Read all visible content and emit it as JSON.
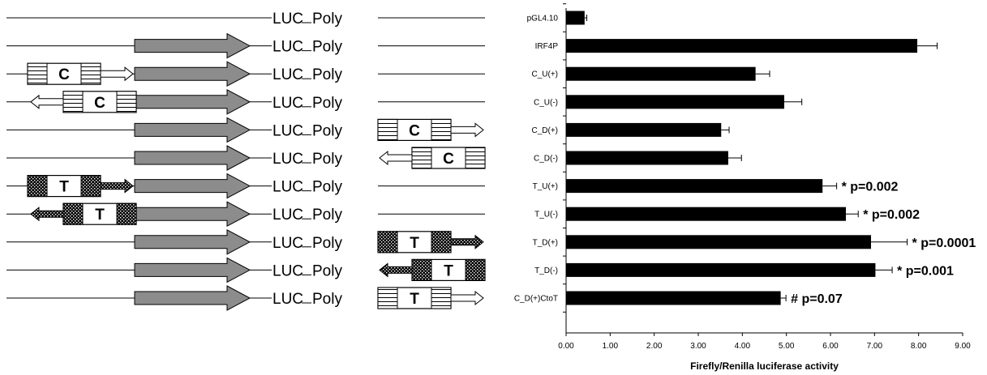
{
  "chart_data": {
    "type": "bar",
    "orientation": "horizontal",
    "categories": [
      "pGL4.10",
      "IRF4P",
      "C_U(+)",
      "C_U(-)",
      "C_D(+)",
      "C_D(-)",
      "T_U(+)",
      "T_U(-)",
      "T_D(+)",
      "T_D(-)",
      "C_D(+)CtoT"
    ],
    "values": [
      0.42,
      7.97,
      4.3,
      4.95,
      3.52,
      3.68,
      5.82,
      6.35,
      6.92,
      7.02,
      4.87
    ],
    "errors": [
      0.05,
      0.45,
      0.32,
      0.4,
      0.18,
      0.3,
      0.32,
      0.28,
      0.82,
      0.38,
      0.12
    ],
    "annotations": [
      "",
      "",
      "",
      "",
      "",
      "",
      "* p=0.002",
      "* p=0.002",
      "* p=0.0001",
      "* p=0.001",
      "# p=0.07"
    ],
    "xlabel": "Firefly/Renilla luciferase activity",
    "xlim": [
      0,
      9
    ],
    "xticks": [
      "0.00",
      "1.00",
      "2.00",
      "3.00",
      "4.00",
      "5.00",
      "6.00",
      "7.00",
      "8.00",
      "9.00"
    ],
    "bar_color": "#000000",
    "grid": false
  },
  "constructs": {
    "luc_label": "LUC",
    "poly_label": "Poly",
    "rows": [
      {
        "promoter": false,
        "insert": "none"
      },
      {
        "promoter": true,
        "insert": "none"
      },
      {
        "promoter": true,
        "insert": "upstream",
        "allele": "C",
        "direction": "forward"
      },
      {
        "promoter": true,
        "insert": "upstream",
        "allele": "C",
        "direction": "reverse"
      },
      {
        "promoter": true,
        "insert": "downstream",
        "allele": "C",
        "direction": "forward"
      },
      {
        "promoter": true,
        "insert": "downstream",
        "allele": "C",
        "direction": "reverse"
      },
      {
        "promoter": true,
        "insert": "upstream",
        "allele": "T",
        "direction": "forward"
      },
      {
        "promoter": true,
        "insert": "upstream",
        "allele": "T",
        "direction": "reverse"
      },
      {
        "promoter": true,
        "insert": "downstream",
        "allele": "T",
        "direction": "forward"
      },
      {
        "promoter": true,
        "insert": "downstream",
        "allele": "T",
        "direction": "reverse"
      },
      {
        "promoter": true,
        "insert": "downstream",
        "allele": "T",
        "direction": "forward",
        "style": "striped"
      }
    ]
  }
}
